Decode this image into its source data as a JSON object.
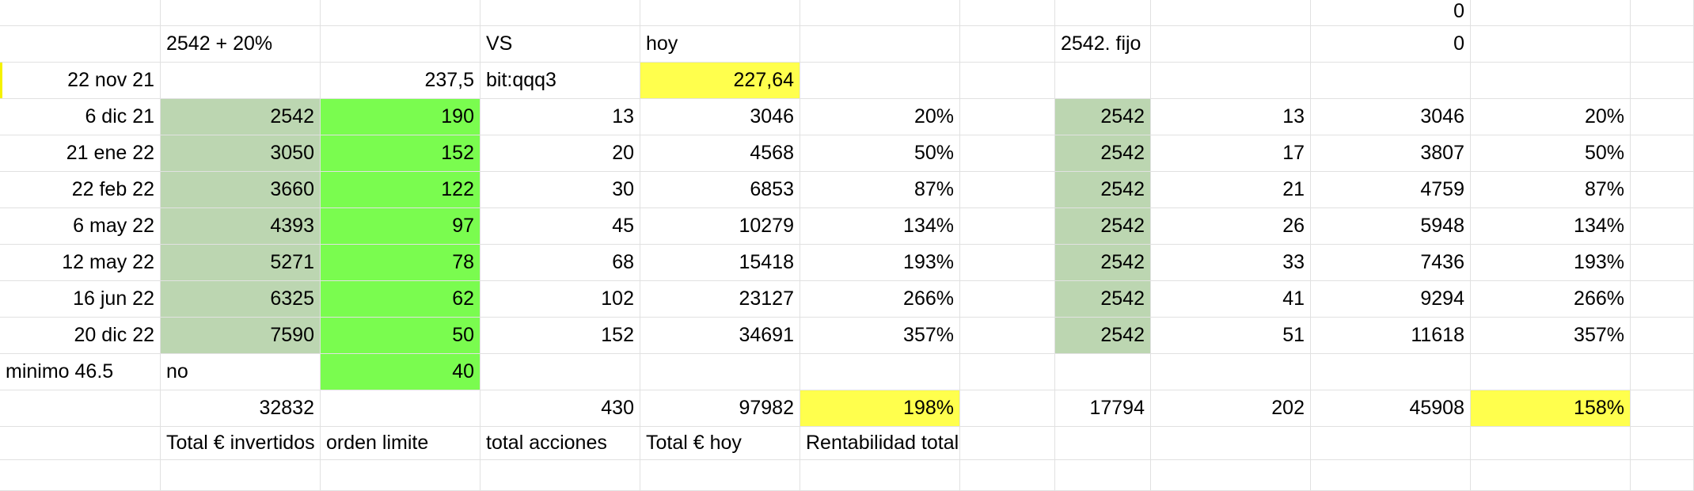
{
  "colors": {
    "sage": "#bcd6b1",
    "lime": "#7afc4f",
    "yellow": "#ffff4d",
    "white": "#ffffff",
    "gridline": "#e1e1e1"
  },
  "rows": [
    [
      {
        "text": "",
        "align": "right",
        "bg": "white"
      },
      {
        "text": "",
        "align": "left",
        "bg": "white"
      },
      {
        "text": "",
        "align": "right",
        "bg": "white"
      },
      {
        "text": "",
        "align": "left",
        "bg": "white"
      },
      {
        "text": "",
        "align": "left",
        "bg": "white"
      },
      {
        "text": "",
        "align": "right",
        "bg": "white"
      },
      {
        "text": "",
        "align": "left",
        "bg": "white"
      },
      {
        "text": "",
        "align": "left",
        "bg": "white"
      },
      {
        "text": "",
        "align": "right",
        "bg": "white"
      },
      {
        "text": "0",
        "align": "right",
        "bg": "white"
      },
      {
        "text": "",
        "align": "right",
        "bg": "white"
      },
      {
        "text": "",
        "align": "left",
        "bg": "white"
      }
    ],
    [
      {
        "text": "",
        "align": "right",
        "bg": "white"
      },
      {
        "text": "2542 + 20%",
        "align": "left",
        "bg": "white"
      },
      {
        "text": "",
        "align": "right",
        "bg": "white"
      },
      {
        "text": "VS",
        "align": "left",
        "bg": "white"
      },
      {
        "text": "hoy",
        "align": "left",
        "bg": "white"
      },
      {
        "text": "",
        "align": "right",
        "bg": "white"
      },
      {
        "text": "",
        "align": "left",
        "bg": "white"
      },
      {
        "text": "2542. fijo",
        "align": "left",
        "bg": "white"
      },
      {
        "text": "",
        "align": "right",
        "bg": "white"
      },
      {
        "text": "0",
        "align": "right",
        "bg": "white"
      },
      {
        "text": "",
        "align": "right",
        "bg": "white"
      },
      {
        "text": "",
        "align": "left",
        "bg": "white"
      }
    ],
    [
      {
        "text": "22 nov 21",
        "align": "right",
        "bg": "white",
        "mark": true
      },
      {
        "text": "",
        "align": "left",
        "bg": "white"
      },
      {
        "text": "237,5",
        "align": "right",
        "bg": "white"
      },
      {
        "text": "bit:qqq3",
        "align": "left",
        "bg": "white"
      },
      {
        "text": "227,64",
        "align": "right",
        "bg": "yellow"
      },
      {
        "text": "",
        "align": "right",
        "bg": "white"
      },
      {
        "text": "",
        "align": "left",
        "bg": "white"
      },
      {
        "text": "",
        "align": "left",
        "bg": "white"
      },
      {
        "text": "",
        "align": "right",
        "bg": "white"
      },
      {
        "text": "",
        "align": "right",
        "bg": "white"
      },
      {
        "text": "",
        "align": "right",
        "bg": "white"
      },
      {
        "text": "",
        "align": "left",
        "bg": "white"
      }
    ],
    [
      {
        "text": "6 dic 21",
        "align": "right",
        "bg": "white"
      },
      {
        "text": "2542",
        "align": "right",
        "bg": "sage"
      },
      {
        "text": "190",
        "align": "right",
        "bg": "lime"
      },
      {
        "text": "13",
        "align": "right",
        "bg": "white"
      },
      {
        "text": "3046",
        "align": "right",
        "bg": "white"
      },
      {
        "text": "20%",
        "align": "right",
        "bg": "white"
      },
      {
        "text": "",
        "align": "left",
        "bg": "white"
      },
      {
        "text": "2542",
        "align": "right",
        "bg": "sage"
      },
      {
        "text": "13",
        "align": "right",
        "bg": "white"
      },
      {
        "text": "3046",
        "align": "right",
        "bg": "white"
      },
      {
        "text": "20%",
        "align": "right",
        "bg": "white"
      },
      {
        "text": "",
        "align": "left",
        "bg": "white"
      }
    ],
    [
      {
        "text": "21 ene 22",
        "align": "right",
        "bg": "white"
      },
      {
        "text": "3050",
        "align": "right",
        "bg": "sage"
      },
      {
        "text": "152",
        "align": "right",
        "bg": "lime"
      },
      {
        "text": "20",
        "align": "right",
        "bg": "white"
      },
      {
        "text": "4568",
        "align": "right",
        "bg": "white"
      },
      {
        "text": "50%",
        "align": "right",
        "bg": "white"
      },
      {
        "text": "",
        "align": "left",
        "bg": "white"
      },
      {
        "text": "2542",
        "align": "right",
        "bg": "sage"
      },
      {
        "text": "17",
        "align": "right",
        "bg": "white"
      },
      {
        "text": "3807",
        "align": "right",
        "bg": "white"
      },
      {
        "text": "50%",
        "align": "right",
        "bg": "white"
      },
      {
        "text": "",
        "align": "left",
        "bg": "white"
      }
    ],
    [
      {
        "text": "22 feb 22",
        "align": "right",
        "bg": "white"
      },
      {
        "text": "3660",
        "align": "right",
        "bg": "sage"
      },
      {
        "text": "122",
        "align": "right",
        "bg": "lime"
      },
      {
        "text": "30",
        "align": "right",
        "bg": "white"
      },
      {
        "text": "6853",
        "align": "right",
        "bg": "white"
      },
      {
        "text": "87%",
        "align": "right",
        "bg": "white"
      },
      {
        "text": "",
        "align": "left",
        "bg": "white"
      },
      {
        "text": "2542",
        "align": "right",
        "bg": "sage"
      },
      {
        "text": "21",
        "align": "right",
        "bg": "white"
      },
      {
        "text": "4759",
        "align": "right",
        "bg": "white"
      },
      {
        "text": "87%",
        "align": "right",
        "bg": "white"
      },
      {
        "text": "",
        "align": "left",
        "bg": "white"
      }
    ],
    [
      {
        "text": "6 may 22",
        "align": "right",
        "bg": "white"
      },
      {
        "text": "4393",
        "align": "right",
        "bg": "sage"
      },
      {
        "text": "97",
        "align": "right",
        "bg": "lime"
      },
      {
        "text": "45",
        "align": "right",
        "bg": "white"
      },
      {
        "text": "10279",
        "align": "right",
        "bg": "white"
      },
      {
        "text": "134%",
        "align": "right",
        "bg": "white"
      },
      {
        "text": "",
        "align": "left",
        "bg": "white"
      },
      {
        "text": "2542",
        "align": "right",
        "bg": "sage"
      },
      {
        "text": "26",
        "align": "right",
        "bg": "white"
      },
      {
        "text": "5948",
        "align": "right",
        "bg": "white"
      },
      {
        "text": "134%",
        "align": "right",
        "bg": "white"
      },
      {
        "text": "",
        "align": "left",
        "bg": "white"
      }
    ],
    [
      {
        "text": "12 may 22",
        "align": "right",
        "bg": "white"
      },
      {
        "text": "5271",
        "align": "right",
        "bg": "sage"
      },
      {
        "text": "78",
        "align": "right",
        "bg": "lime"
      },
      {
        "text": "68",
        "align": "right",
        "bg": "white"
      },
      {
        "text": "15418",
        "align": "right",
        "bg": "white"
      },
      {
        "text": "193%",
        "align": "right",
        "bg": "white"
      },
      {
        "text": "",
        "align": "left",
        "bg": "white"
      },
      {
        "text": "2542",
        "align": "right",
        "bg": "sage"
      },
      {
        "text": "33",
        "align": "right",
        "bg": "white"
      },
      {
        "text": "7436",
        "align": "right",
        "bg": "white"
      },
      {
        "text": "193%",
        "align": "right",
        "bg": "white"
      },
      {
        "text": "",
        "align": "left",
        "bg": "white"
      }
    ],
    [
      {
        "text": "16 jun 22",
        "align": "right",
        "bg": "white"
      },
      {
        "text": "6325",
        "align": "right",
        "bg": "sage"
      },
      {
        "text": "62",
        "align": "right",
        "bg": "lime"
      },
      {
        "text": "102",
        "align": "right",
        "bg": "white"
      },
      {
        "text": "23127",
        "align": "right",
        "bg": "white"
      },
      {
        "text": "266%",
        "align": "right",
        "bg": "white"
      },
      {
        "text": "",
        "align": "left",
        "bg": "white"
      },
      {
        "text": "2542",
        "align": "right",
        "bg": "sage"
      },
      {
        "text": "41",
        "align": "right",
        "bg": "white"
      },
      {
        "text": "9294",
        "align": "right",
        "bg": "white"
      },
      {
        "text": "266%",
        "align": "right",
        "bg": "white"
      },
      {
        "text": "",
        "align": "left",
        "bg": "white"
      }
    ],
    [
      {
        "text": "20 dic 22",
        "align": "right",
        "bg": "white"
      },
      {
        "text": "7590",
        "align": "right",
        "bg": "sage"
      },
      {
        "text": "50",
        "align": "right",
        "bg": "lime"
      },
      {
        "text": "152",
        "align": "right",
        "bg": "white"
      },
      {
        "text": "34691",
        "align": "right",
        "bg": "white"
      },
      {
        "text": "357%",
        "align": "right",
        "bg": "white"
      },
      {
        "text": "",
        "align": "left",
        "bg": "white"
      },
      {
        "text": "2542",
        "align": "right",
        "bg": "sage"
      },
      {
        "text": "51",
        "align": "right",
        "bg": "white"
      },
      {
        "text": "11618",
        "align": "right",
        "bg": "white"
      },
      {
        "text": "357%",
        "align": "right",
        "bg": "white"
      },
      {
        "text": "",
        "align": "left",
        "bg": "white"
      }
    ],
    [
      {
        "text": "minimo 46.5",
        "align": "left",
        "bg": "white"
      },
      {
        "text": "no",
        "align": "left",
        "bg": "white"
      },
      {
        "text": "40",
        "align": "right",
        "bg": "lime"
      },
      {
        "text": "",
        "align": "right",
        "bg": "white"
      },
      {
        "text": "",
        "align": "right",
        "bg": "white"
      },
      {
        "text": "",
        "align": "right",
        "bg": "white"
      },
      {
        "text": "",
        "align": "left",
        "bg": "white"
      },
      {
        "text": "",
        "align": "right",
        "bg": "white"
      },
      {
        "text": "",
        "align": "right",
        "bg": "white"
      },
      {
        "text": "",
        "align": "right",
        "bg": "white"
      },
      {
        "text": "",
        "align": "right",
        "bg": "white"
      },
      {
        "text": "",
        "align": "left",
        "bg": "white"
      }
    ],
    [
      {
        "text": "",
        "align": "right",
        "bg": "white"
      },
      {
        "text": "32832",
        "align": "right",
        "bg": "white"
      },
      {
        "text": "",
        "align": "right",
        "bg": "white"
      },
      {
        "text": "430",
        "align": "right",
        "bg": "white"
      },
      {
        "text": "97982",
        "align": "right",
        "bg": "white"
      },
      {
        "text": "198%",
        "align": "right",
        "bg": "yellow"
      },
      {
        "text": "",
        "align": "left",
        "bg": "white"
      },
      {
        "text": "17794",
        "align": "right",
        "bg": "white"
      },
      {
        "text": "202",
        "align": "right",
        "bg": "white"
      },
      {
        "text": "45908",
        "align": "right",
        "bg": "white"
      },
      {
        "text": "158%",
        "align": "right",
        "bg": "yellow"
      },
      {
        "text": "",
        "align": "left",
        "bg": "white"
      }
    ],
    [
      {
        "text": "",
        "align": "right",
        "bg": "white"
      },
      {
        "text": "Total € invertidos",
        "align": "left",
        "bg": "white",
        "clip": true
      },
      {
        "text": "orden limite",
        "align": "left",
        "bg": "white"
      },
      {
        "text": "total acciones",
        "align": "left",
        "bg": "white"
      },
      {
        "text": "Total € hoy",
        "align": "left",
        "bg": "white"
      },
      {
        "text": "Rentabilidad total",
        "align": "left",
        "bg": "white",
        "overflow": true
      },
      {
        "text": "",
        "align": "left",
        "bg": "white"
      },
      {
        "text": "",
        "align": "right",
        "bg": "white"
      },
      {
        "text": "",
        "align": "right",
        "bg": "white"
      },
      {
        "text": "",
        "align": "right",
        "bg": "white"
      },
      {
        "text": "",
        "align": "right",
        "bg": "white"
      },
      {
        "text": "",
        "align": "left",
        "bg": "white"
      }
    ],
    [
      {
        "text": "",
        "align": "right",
        "bg": "white"
      },
      {
        "text": "",
        "align": "left",
        "bg": "white"
      },
      {
        "text": "",
        "align": "right",
        "bg": "white"
      },
      {
        "text": "",
        "align": "left",
        "bg": "white"
      },
      {
        "text": "",
        "align": "left",
        "bg": "white"
      },
      {
        "text": "",
        "align": "left",
        "bg": "white"
      },
      {
        "text": "",
        "align": "left",
        "bg": "white"
      },
      {
        "text": "",
        "align": "right",
        "bg": "white"
      },
      {
        "text": "",
        "align": "right",
        "bg": "white"
      },
      {
        "text": "",
        "align": "right",
        "bg": "white"
      },
      {
        "text": "",
        "align": "right",
        "bg": "white"
      },
      {
        "text": "",
        "align": "left",
        "bg": "white"
      }
    ]
  ]
}
